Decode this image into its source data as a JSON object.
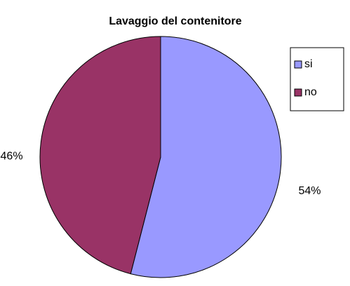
{
  "chart_data": {
    "type": "pie",
    "title": "Lavaggio del contenitore",
    "categories": [
      "si",
      "no"
    ],
    "values": [
      54,
      46
    ],
    "value_labels": [
      "54%",
      "46%"
    ],
    "colors": [
      "#9999FF",
      "#993366"
    ],
    "legend": "right"
  }
}
